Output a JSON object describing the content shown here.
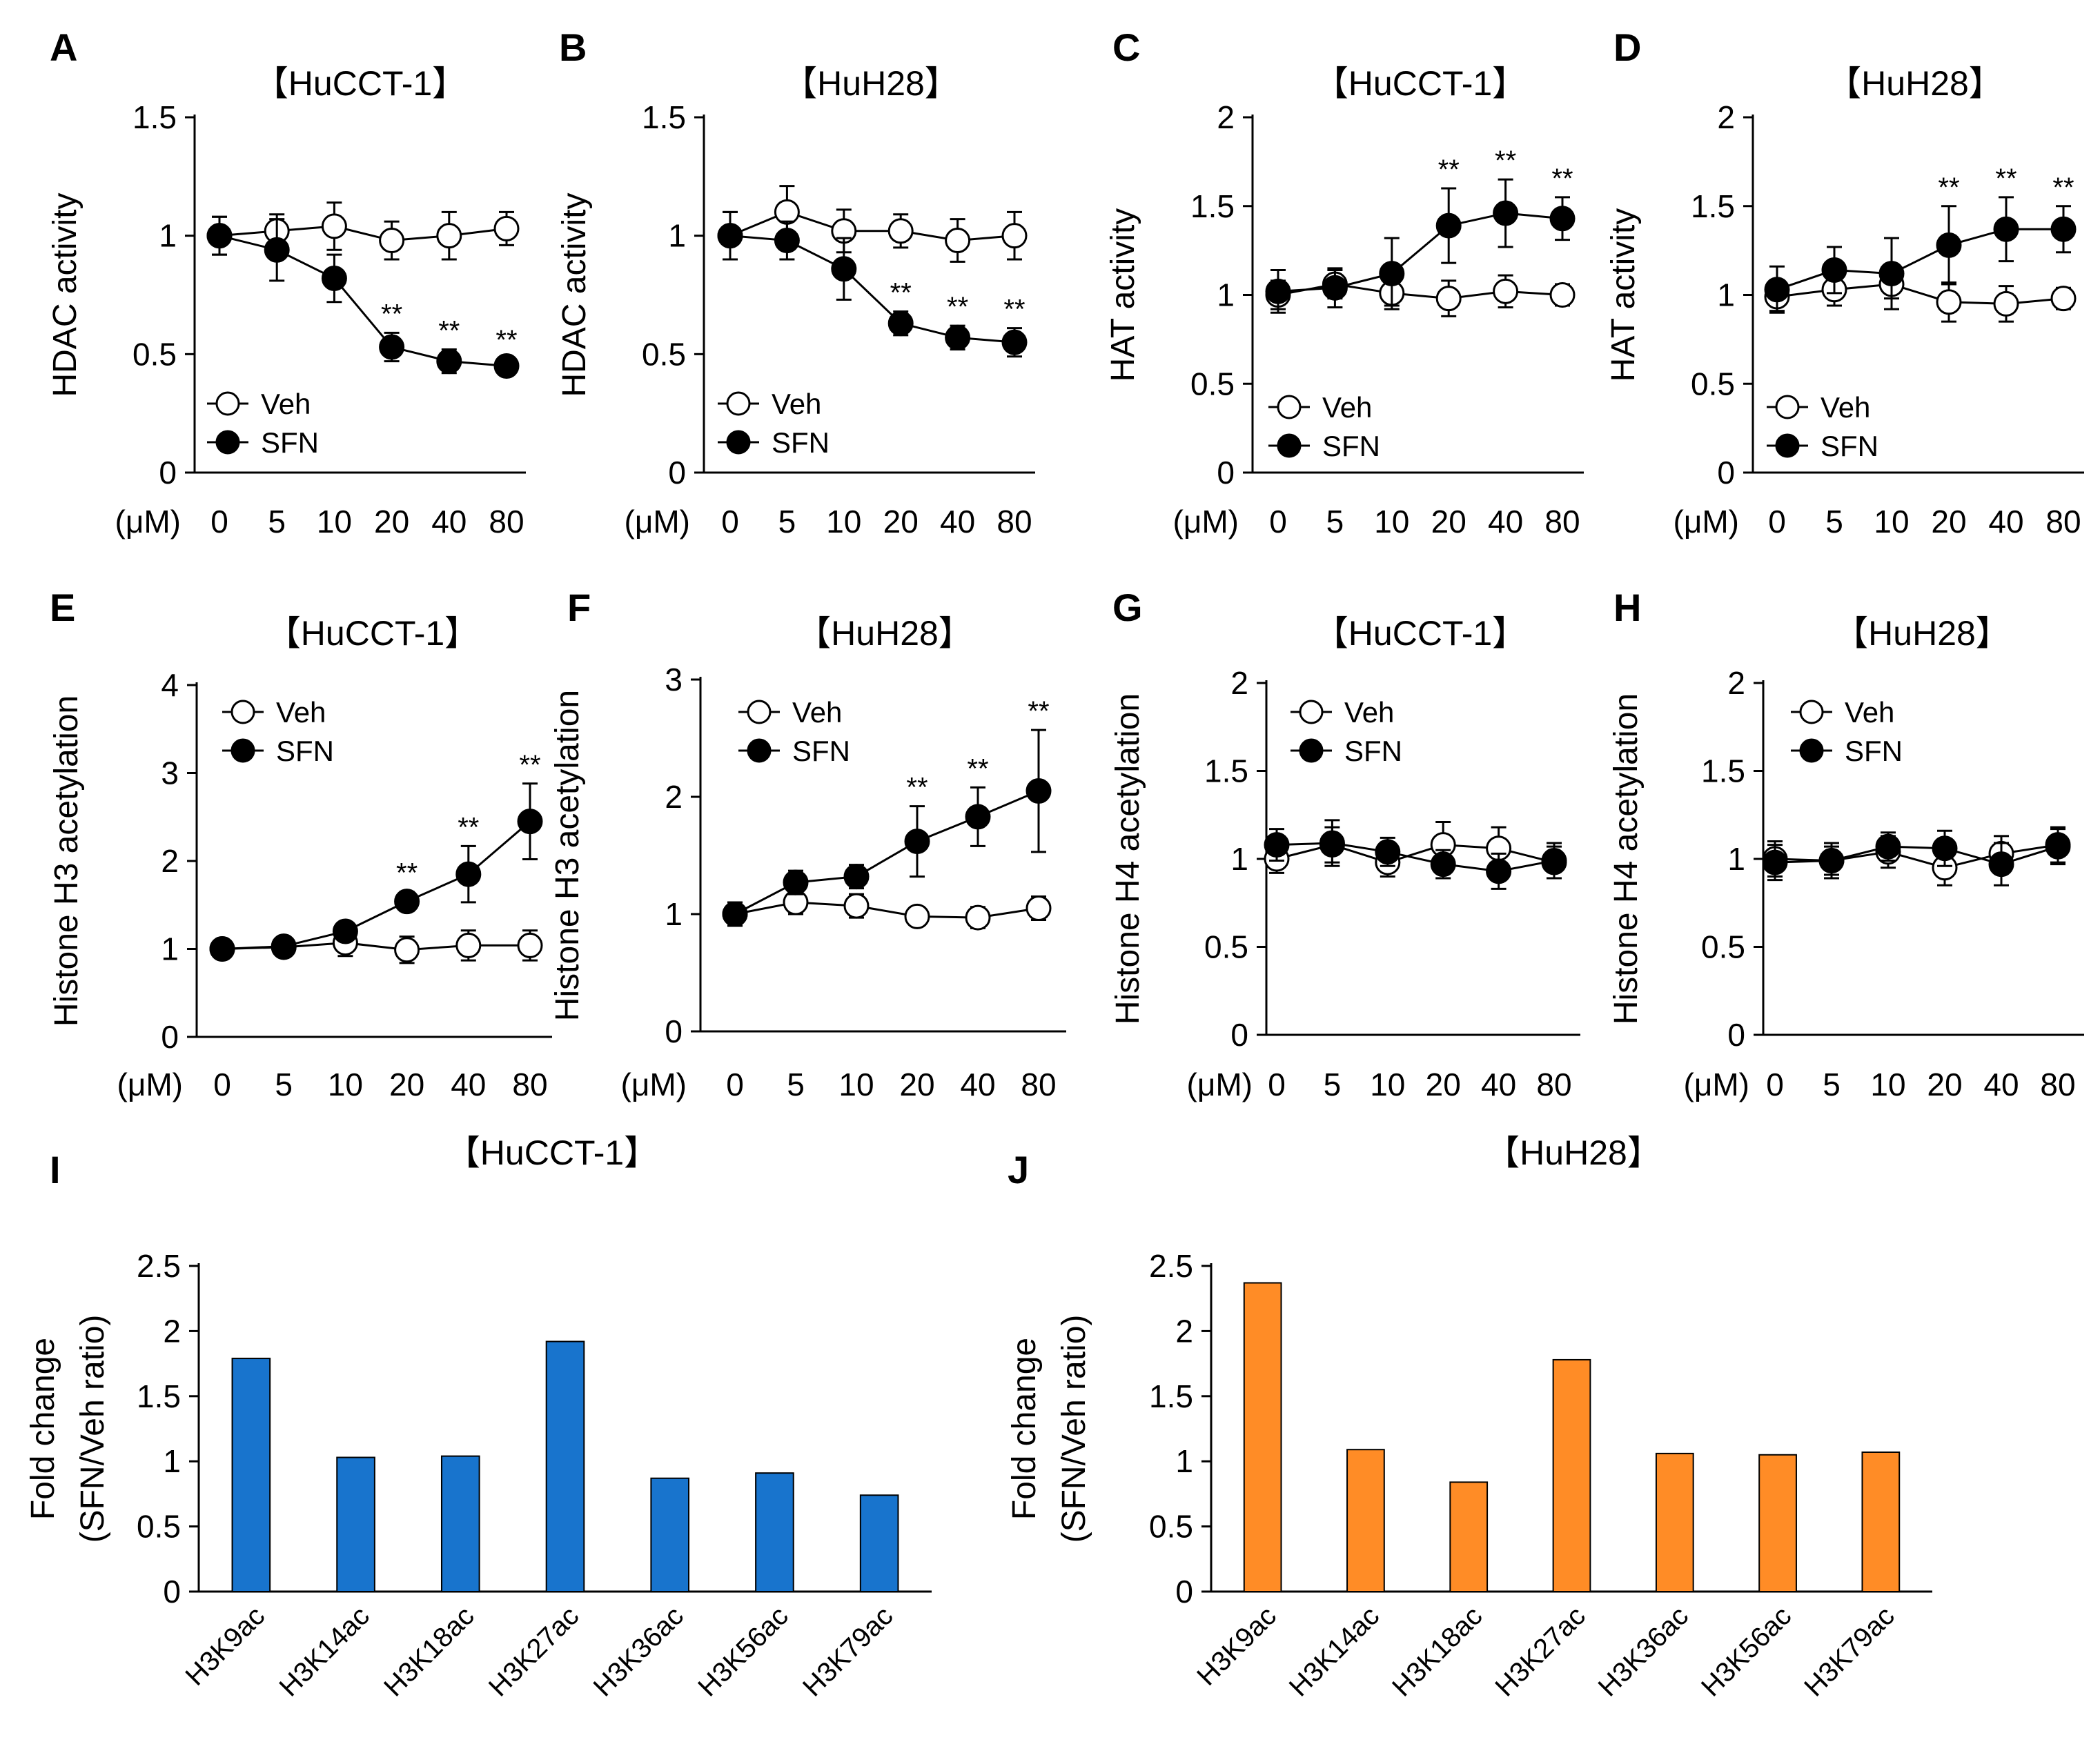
{
  "colors": {
    "axis": "#000000",
    "bar_I": "#1874CD",
    "bar_J": "#FF8C26",
    "open_marker": "#ffffff",
    "filled_marker": "#000000"
  },
  "legend": {
    "veh": "Veh",
    "sfn": "SFN"
  },
  "unit_label": "(μM)",
  "chart_data": [
    {
      "panel": "A",
      "type": "line",
      "title": "【HuCCT-1】",
      "ylabel": "HDAC activity",
      "categories": [
        "0",
        "5",
        "10",
        "20",
        "40",
        "80"
      ],
      "ylim": [
        0,
        1.5
      ],
      "yticks": [
        0,
        0.5,
        1,
        1.5
      ],
      "ytick_labels": [
        "0",
        "0.5",
        "1",
        "1.5"
      ],
      "series": [
        {
          "name": "Veh",
          "marker": "open",
          "values": [
            1.0,
            1.02,
            1.04,
            0.98,
            1.0,
            1.03
          ],
          "errors": [
            0.08,
            0.07,
            0.1,
            0.08,
            0.1,
            0.07
          ]
        },
        {
          "name": "SFN",
          "marker": "filled",
          "values": [
            1.0,
            0.94,
            0.82,
            0.53,
            0.47,
            0.45
          ],
          "errors": [
            0.08,
            0.13,
            0.1,
            0.06,
            0.05,
            0.03
          ]
        }
      ],
      "significance": [
        "",
        "",
        "",
        "**",
        "**",
        "**"
      ]
    },
    {
      "panel": "B",
      "type": "line",
      "title": "【HuH28】",
      "ylabel": "HDAC activity",
      "categories": [
        "0",
        "5",
        "10",
        "20",
        "40",
        "80"
      ],
      "ylim": [
        0,
        1.5
      ],
      "yticks": [
        0,
        0.5,
        1,
        1.5
      ],
      "ytick_labels": [
        "0",
        "0.5",
        "1",
        "1.5"
      ],
      "series": [
        {
          "name": "Veh",
          "marker": "open",
          "values": [
            1.0,
            1.1,
            1.02,
            1.02,
            0.98,
            1.0
          ],
          "errors": [
            0.1,
            0.11,
            0.09,
            0.07,
            0.09,
            0.1
          ]
        },
        {
          "name": "SFN",
          "marker": "filled",
          "values": [
            1.0,
            0.98,
            0.86,
            0.63,
            0.57,
            0.55
          ],
          "errors": [
            0.1,
            0.08,
            0.13,
            0.05,
            0.05,
            0.06
          ]
        }
      ],
      "significance": [
        "",
        "",
        "",
        "**",
        "**",
        "**"
      ]
    },
    {
      "panel": "C",
      "type": "line",
      "title": "【HuCCT-1】",
      "ylabel": "HAT activity",
      "categories": [
        "0",
        "5",
        "10",
        "20",
        "40",
        "80"
      ],
      "ylim": [
        0,
        2
      ],
      "yticks": [
        0,
        0.5,
        1,
        1.5,
        2
      ],
      "ytick_labels": [
        "0",
        "0.5",
        "1",
        "1.5",
        "2"
      ],
      "series": [
        {
          "name": "Veh",
          "marker": "open",
          "values": [
            1.0,
            1.06,
            1.01,
            0.98,
            1.02,
            1.0
          ],
          "errors": [
            0.08,
            0.08,
            0.07,
            0.1,
            0.09,
            0.06
          ]
        },
        {
          "name": "SFN",
          "marker": "filled",
          "values": [
            1.02,
            1.04,
            1.12,
            1.39,
            1.46,
            1.43
          ],
          "errors": [
            0.12,
            0.11,
            0.2,
            0.21,
            0.19,
            0.12
          ]
        }
      ],
      "significance": [
        "",
        "",
        "",
        "**",
        "**",
        "**"
      ]
    },
    {
      "panel": "D",
      "type": "line",
      "title": "【HuH28】",
      "ylabel": "HAT activity",
      "categories": [
        "0",
        "5",
        "10",
        "20",
        "40",
        "80"
      ],
      "ylim": [
        0,
        2
      ],
      "yticks": [
        0,
        0.5,
        1,
        1.5,
        2
      ],
      "ytick_labels": [
        "0",
        "0.5",
        "1",
        "1.5",
        "2"
      ],
      "series": [
        {
          "name": "Veh",
          "marker": "open",
          "values": [
            0.99,
            1.03,
            1.06,
            0.96,
            0.95,
            0.98
          ],
          "errors": [
            0.08,
            0.09,
            0.08,
            0.11,
            0.1,
            0.06
          ]
        },
        {
          "name": "SFN",
          "marker": "filled",
          "values": [
            1.03,
            1.14,
            1.12,
            1.28,
            1.37,
            1.37
          ],
          "errors": [
            0.13,
            0.13,
            0.2,
            0.22,
            0.18,
            0.13
          ]
        }
      ],
      "significance": [
        "",
        "",
        "",
        "**",
        "**",
        "**"
      ]
    },
    {
      "panel": "E",
      "type": "line",
      "title": "【HuCCT-1】",
      "ylabel": "Histone H3 acetylation",
      "categories": [
        "0",
        "5",
        "10",
        "20",
        "40",
        "80"
      ],
      "ylim": [
        0,
        4
      ],
      "yticks": [
        0,
        1,
        2,
        3,
        4
      ],
      "ytick_labels": [
        "0",
        "1",
        "2",
        "3",
        "4"
      ],
      "series": [
        {
          "name": "Veh",
          "marker": "open",
          "values": [
            1.0,
            1.02,
            1.07,
            0.99,
            1.04,
            1.04
          ],
          "errors": [
            0.05,
            0.08,
            0.15,
            0.15,
            0.17,
            0.17
          ]
        },
        {
          "name": "SFN",
          "marker": "filled",
          "values": [
            1.0,
            1.03,
            1.2,
            1.54,
            1.85,
            2.45
          ],
          "errors": [
            0.05,
            0.08,
            0.08,
            0.11,
            0.32,
            0.43
          ]
        }
      ],
      "significance": [
        "",
        "",
        "",
        "**",
        "**",
        "**"
      ]
    },
    {
      "panel": "F",
      "type": "line",
      "title": "【HuH28】",
      "ylabel": "Histone H3 acetylation",
      "categories": [
        "0",
        "5",
        "10",
        "20",
        "40",
        "80"
      ],
      "ylim": [
        0,
        3
      ],
      "yticks": [
        0,
        1,
        2,
        3
      ],
      "ytick_labels": [
        "0",
        "1",
        "2",
        "3"
      ],
      "series": [
        {
          "name": "Veh",
          "marker": "open",
          "values": [
            1.0,
            1.1,
            1.07,
            0.98,
            0.97,
            1.05
          ],
          "errors": [
            0.1,
            0.1,
            0.1,
            0.08,
            0.09,
            0.1
          ]
        },
        {
          "name": "SFN",
          "marker": "filled",
          "values": [
            1.0,
            1.27,
            1.32,
            1.62,
            1.83,
            2.05
          ],
          "errors": [
            0.1,
            0.1,
            0.1,
            0.3,
            0.25,
            0.52
          ]
        }
      ],
      "significance": [
        "",
        "",
        "",
        "**",
        "**",
        "**"
      ]
    },
    {
      "panel": "G",
      "type": "line",
      "title": "【HuCCT-1】",
      "ylabel": "Histone H4 acetylation",
      "categories": [
        "0",
        "5",
        "10",
        "20",
        "40",
        "80"
      ],
      "ylim": [
        0,
        2
      ],
      "yticks": [
        0,
        0.5,
        1,
        1.5,
        2
      ],
      "ytick_labels": [
        "0",
        "0.5",
        "1",
        "1.5",
        "2"
      ],
      "series": [
        {
          "name": "Veh",
          "marker": "open",
          "values": [
            1.0,
            1.08,
            0.98,
            1.08,
            1.06,
            0.98
          ],
          "errors": [
            0.08,
            0.1,
            0.08,
            0.13,
            0.12,
            0.09
          ]
        },
        {
          "name": "SFN",
          "marker": "filled",
          "values": [
            1.08,
            1.09,
            1.04,
            0.97,
            0.93,
            0.99
          ],
          "errors": [
            0.09,
            0.13,
            0.08,
            0.08,
            0.1,
            0.1
          ]
        }
      ],
      "significance": [
        "",
        "",
        "",
        "",
        "",
        ""
      ]
    },
    {
      "panel": "H",
      "type": "line",
      "title": "【HuH28】",
      "ylabel": "Histone H4 acetylation",
      "categories": [
        "0",
        "5",
        "10",
        "20",
        "40",
        "80"
      ],
      "ylim": [
        0,
        2
      ],
      "yticks": [
        0,
        0.5,
        1,
        1.5,
        2
      ],
      "ytick_labels": [
        "0",
        "0.5",
        "1",
        "1.5",
        "2"
      ],
      "series": [
        {
          "name": "Veh",
          "marker": "open",
          "values": [
            1.0,
            0.99,
            1.04,
            0.95,
            1.03,
            1.08
          ],
          "errors": [
            0.1,
            0.08,
            0.09,
            0.1,
            0.1,
            0.1
          ]
        },
        {
          "name": "SFN",
          "marker": "filled",
          "values": [
            0.98,
            0.99,
            1.07,
            1.06,
            0.97,
            1.07
          ],
          "errors": [
            0.1,
            0.1,
            0.08,
            0.1,
            0.12,
            0.1
          ]
        }
      ],
      "significance": [
        "",
        "",
        "",
        "",
        "",
        ""
      ]
    },
    {
      "panel": "I",
      "type": "bar",
      "title": "【HuCCT-1】",
      "ylabel": [
        "Fold change",
        "(SFN/Veh ratio)"
      ],
      "categories": [
        "H3K9ac",
        "H3K14ac",
        "H3K18ac",
        "H3K27ac",
        "H3K36ac",
        "H3K56ac",
        "H3K79ac"
      ],
      "values": [
        1.79,
        1.03,
        1.04,
        1.92,
        0.87,
        0.91,
        0.74
      ],
      "ylim": [
        0,
        2.5
      ],
      "yticks": [
        0,
        0.5,
        1,
        1.5,
        2,
        2.5
      ],
      "ytick_labels": [
        "0",
        "0.5",
        "1",
        "1.5",
        "2",
        "2.5"
      ]
    },
    {
      "panel": "J",
      "type": "bar",
      "title": "【HuH28】",
      "ylabel": [
        "Fold change",
        "(SFN/Veh ratio)"
      ],
      "categories": [
        "H3K9ac",
        "H3K14ac",
        "H3K18ac",
        "H3K27ac",
        "H3K36ac",
        "H3K56ac",
        "H3K79ac"
      ],
      "values": [
        2.37,
        1.09,
        0.84,
        1.78,
        1.06,
        1.05,
        1.07
      ],
      "ylim": [
        0,
        2.5
      ],
      "yticks": [
        0,
        0.5,
        1,
        1.5,
        2,
        2.5
      ],
      "ytick_labels": [
        "0",
        "0.5",
        "1",
        "1.5",
        "2",
        "2.5"
      ]
    }
  ]
}
